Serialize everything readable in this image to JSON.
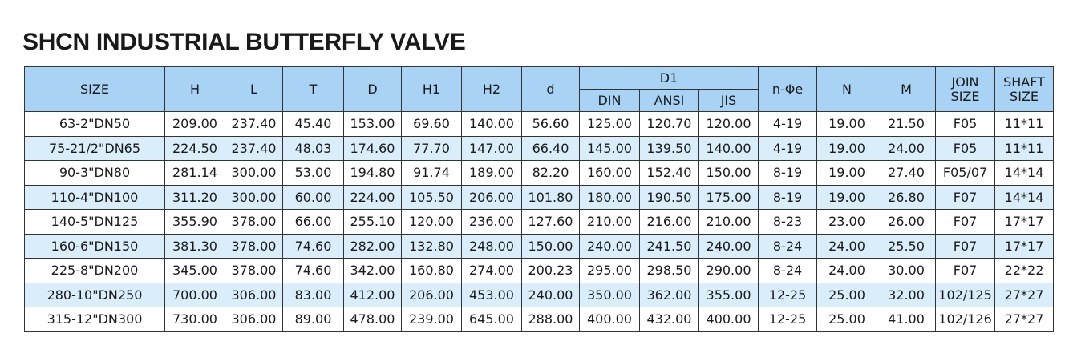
{
  "title": "SHCN INDUSTRIAL BUTTERFLY VALVE",
  "table": {
    "header": [
      "SIZE",
      "H",
      "L",
      "T",
      "D",
      "H1",
      "H2",
      "d",
      "D1",
      "n-Φe",
      "N",
      "M",
      "JOIN SIZE",
      "SHAFT SIZE"
    ],
    "subheader": [
      "DIN",
      "ANSI",
      "JIS"
    ],
    "rows": [
      [
        "63-2\"DN50",
        "209.00",
        "237.40",
        "45.40",
        "153.00",
        "69.60",
        "140.00",
        "56.60",
        "125.00",
        "120.70",
        "120.00",
        "4-19",
        "19.00",
        "21.50",
        "F05",
        "11*11"
      ],
      [
        "75-21/2\"DN65",
        "224.50",
        "237.40",
        "48.03",
        "174.60",
        "77.70",
        "147.00",
        "66.40",
        "145.00",
        "139.50",
        "140.00",
        "4-19",
        "19.00",
        "24.00",
        "F05",
        "11*11"
      ],
      [
        "90-3\"DN80",
        "281.14",
        "300.00",
        "53.00",
        "194.80",
        "91.74",
        "189.00",
        "82.20",
        "160.00",
        "152.40",
        "150.00",
        "8-19",
        "19.00",
        "27.40",
        "F05/07",
        "14*14"
      ],
      [
        "110-4\"DN100",
        "311.20",
        "300.00",
        "60.00",
        "224.00",
        "105.50",
        "206.00",
        "101.80",
        "180.00",
        "190.50",
        "175.00",
        "8-19",
        "19.00",
        "26.80",
        "F07",
        "14*14"
      ],
      [
        "140-5\"DN125",
        "355.90",
        "378.00",
        "66.00",
        "255.10",
        "120.00",
        "236.00",
        "127.60",
        "210.00",
        "216.00",
        "210.00",
        "8-23",
        "23.00",
        "26.00",
        "F07",
        "17*17"
      ],
      [
        "160-6\"DN150",
        "381.30",
        "378.00",
        "74.60",
        "282.00",
        "132.80",
        "248.00",
        "150.00",
        "240.00",
        "241.50",
        "240.00",
        "8-24",
        "24.00",
        "25.50",
        "F07",
        "17*17"
      ],
      [
        "225-8\"DN200",
        "345.00",
        "378.00",
        "74.60",
        "342.00",
        "160.80",
        "274.00",
        "200.23",
        "295.00",
        "298.50",
        "290.00",
        "8-24",
        "24.00",
        "30.00",
        "F07",
        "22*22"
      ],
      [
        "280-10\"DN250",
        "700.00",
        "306.00",
        "83.00",
        "412.00",
        "206.00",
        "453.00",
        "240.00",
        "350.00",
        "362.00",
        "355.00",
        "12-25",
        "25.00",
        "32.00",
        "102/125",
        "27*27"
      ],
      [
        "315-12\"DN300",
        "730.00",
        "306.00",
        "89.00",
        "478.00",
        "239.00",
        "645.00",
        "288.00",
        "400.00",
        "432.00",
        "400.00",
        "12-25",
        "25.00",
        "41.00",
        "102/126",
        "27*27"
      ]
    ]
  }
}
